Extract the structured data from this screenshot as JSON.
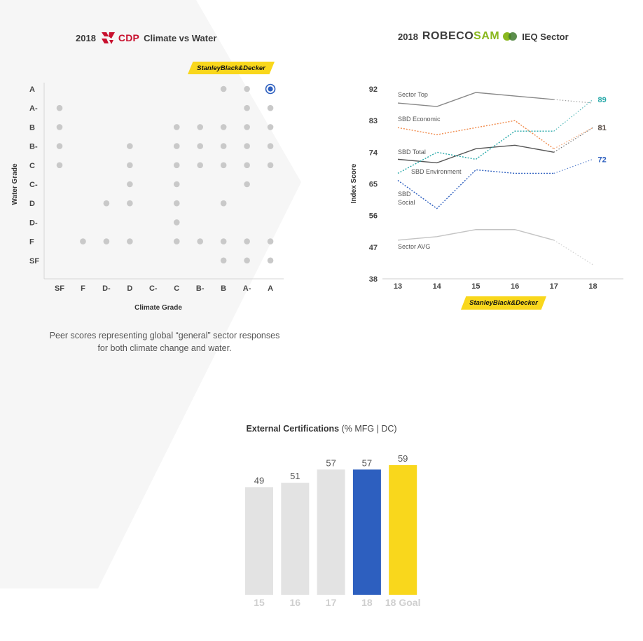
{
  "colors": {
    "dot_gray": "#c9c9c9",
    "sbd_blue": "#2d5fbf",
    "sbd_yellow": "#f9d71c",
    "cdp_red": "#c8102e",
    "robeco_green": "#8ab81f",
    "bar_gray": "#e3e3e3",
    "teal": "#26a8a8",
    "orange": "#f08a4b",
    "dark": "#555555"
  },
  "cdp": {
    "year": "2018",
    "brand": "CDP",
    "subtitle": "Climate vs Water",
    "badge": "StanleyBlack&Decker",
    "caption": "Peer scores representing global “general” sector responses for both climate change and water."
  },
  "robeco": {
    "year": "2018",
    "brand_part1": "ROBECO",
    "brand_part2": "SAM",
    "subtitle": "IEQ Sector",
    "badge": "StanleyBlack&Decker"
  },
  "certs": {
    "title_bold": "External Certifications",
    "title_rest": " (% MFG | DC)"
  },
  "chart_data": [
    {
      "type": "scatter",
      "xlabel": "Climate Grade",
      "ylabel": "Water Grade",
      "x_categories": [
        "SF",
        "F",
        "D-",
        "D",
        "C-",
        "C",
        "B-",
        "B",
        "A-",
        "A"
      ],
      "y_categories": [
        "A",
        "A-",
        "B",
        "B-",
        "C",
        "C-",
        "D",
        "D-",
        "F",
        "SF"
      ],
      "grid": false,
      "points": [
        {
          "x": "B",
          "y": "A"
        },
        {
          "x": "A-",
          "y": "A"
        },
        {
          "x": "SF",
          "y": "A-"
        },
        {
          "x": "A-",
          "y": "A-"
        },
        {
          "x": "A",
          "y": "A-"
        },
        {
          "x": "SF",
          "y": "B"
        },
        {
          "x": "C",
          "y": "B"
        },
        {
          "x": "B-",
          "y": "B"
        },
        {
          "x": "B",
          "y": "B"
        },
        {
          "x": "A-",
          "y": "B"
        },
        {
          "x": "A",
          "y": "B"
        },
        {
          "x": "SF",
          "y": "B-"
        },
        {
          "x": "D",
          "y": "B-"
        },
        {
          "x": "C",
          "y": "B-"
        },
        {
          "x": "B-",
          "y": "B-"
        },
        {
          "x": "B",
          "y": "B-"
        },
        {
          "x": "A-",
          "y": "B-"
        },
        {
          "x": "A",
          "y": "B-"
        },
        {
          "x": "SF",
          "y": "C"
        },
        {
          "x": "D",
          "y": "C"
        },
        {
          "x": "C",
          "y": "C"
        },
        {
          "x": "B-",
          "y": "C"
        },
        {
          "x": "B",
          "y": "C"
        },
        {
          "x": "A-",
          "y": "C"
        },
        {
          "x": "A",
          "y": "C"
        },
        {
          "x": "D",
          "y": "C-"
        },
        {
          "x": "C",
          "y": "C-"
        },
        {
          "x": "A-",
          "y": "C-"
        },
        {
          "x": "D-",
          "y": "D"
        },
        {
          "x": "D",
          "y": "D"
        },
        {
          "x": "C",
          "y": "D"
        },
        {
          "x": "B",
          "y": "D"
        },
        {
          "x": "C",
          "y": "D-"
        },
        {
          "x": "F",
          "y": "F"
        },
        {
          "x": "D-",
          "y": "F"
        },
        {
          "x": "D",
          "y": "F"
        },
        {
          "x": "C",
          "y": "F"
        },
        {
          "x": "B-",
          "y": "F"
        },
        {
          "x": "B",
          "y": "F"
        },
        {
          "x": "A-",
          "y": "F"
        },
        {
          "x": "A",
          "y": "F"
        },
        {
          "x": "B",
          "y": "SF"
        },
        {
          "x": "A-",
          "y": "SF"
        },
        {
          "x": "A",
          "y": "SF"
        }
      ],
      "highlight": {
        "x": "A",
        "y": "A"
      }
    },
    {
      "type": "line",
      "ylabel": "Index Score",
      "x": [
        13,
        14,
        15,
        16,
        17,
        18
      ],
      "y_ticks": [
        38,
        47,
        56,
        65,
        74,
        83,
        92
      ],
      "ylim": [
        38,
        92
      ],
      "series": [
        {
          "name": "Sector Top",
          "values": [
            88,
            87,
            91,
            90,
            89,
            88
          ],
          "color": "#888888",
          "style": "solid",
          "proj": "dotted",
          "end_label": ""
        },
        {
          "name": "SBD Economic",
          "values": [
            81,
            79,
            81,
            83,
            75,
            81
          ],
          "color": "#f08a4b",
          "style": "dotted",
          "proj": "dotted",
          "end_label": "81"
        },
        {
          "name": "SBD Total",
          "values": [
            72,
            71,
            75,
            76,
            74,
            81
          ],
          "color": "#555555",
          "style": "solid",
          "proj": "dotted",
          "end_label": "81"
        },
        {
          "name": "SBD Environment",
          "values": [
            68,
            74,
            72,
            80,
            80,
            89
          ],
          "color": "#26a8a8",
          "style": "dotted",
          "proj": "dotted",
          "end_label": "89"
        },
        {
          "name": "SBD Social",
          "values": [
            66,
            58,
            69,
            68,
            68,
            72
          ],
          "color": "#2d5fbf",
          "style": "dotted",
          "proj": "dotted",
          "end_label": "72"
        },
        {
          "name": "Sector AVG",
          "values": [
            49,
            50,
            52,
            52,
            49,
            42
          ],
          "color": "#c4c4c4",
          "style": "solid",
          "proj": "dotted",
          "end_label": ""
        }
      ],
      "labels": [
        {
          "text": "Sector Top",
          "series": "Sector Top"
        },
        {
          "text": "SBD Economic",
          "series": "SBD Economic"
        },
        {
          "text": "SBD Total",
          "series": "SBD Total"
        },
        {
          "text": "SBD Environment",
          "series": "SBD Environment"
        },
        {
          "text": "SBD",
          "series": "SBD Social"
        },
        {
          "text": "Social",
          "series": "SBD Social"
        },
        {
          "text": "Sector AVG",
          "series": "Sector AVG"
        }
      ]
    },
    {
      "type": "bar",
      "categories": [
        "15",
        "16",
        "17",
        "18",
        "18 Goal"
      ],
      "values": [
        49,
        51,
        57,
        57,
        59
      ],
      "bar_colors": [
        "#e3e3e3",
        "#e3e3e3",
        "#e3e3e3",
        "#2d5fbf",
        "#f9d71c"
      ],
      "ylim": [
        0,
        59
      ]
    }
  ]
}
